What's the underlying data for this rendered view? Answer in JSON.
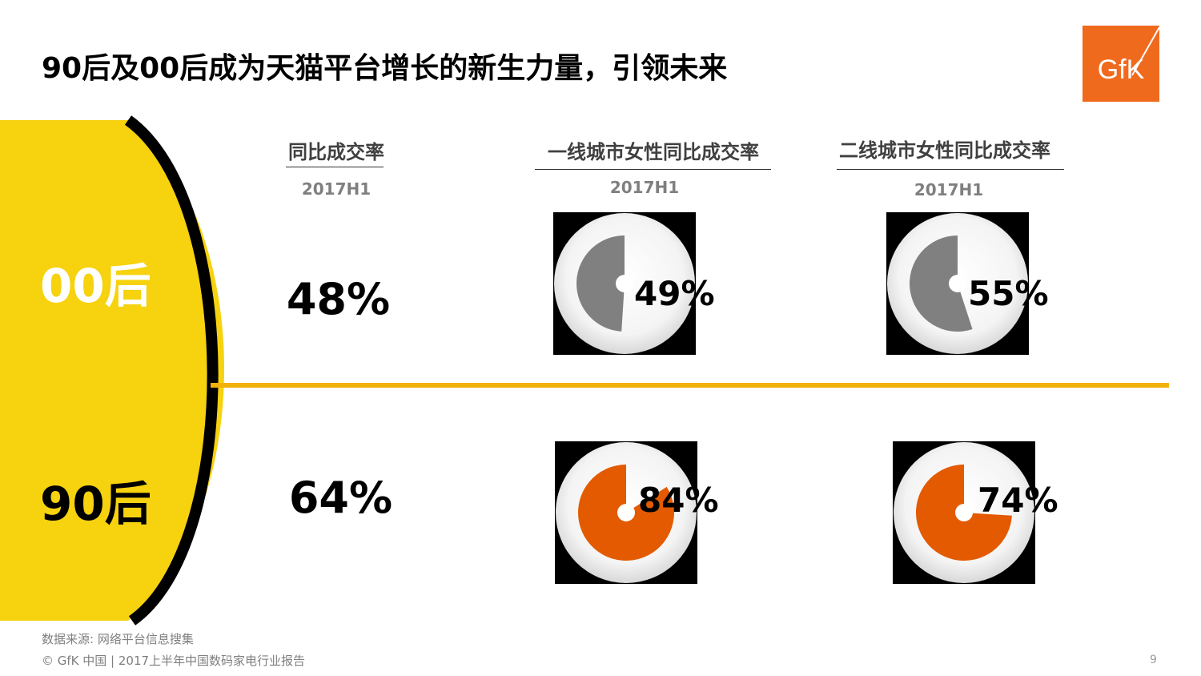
{
  "title": "90后及00后成为天猫平台增长的新生力量，引领未来",
  "logo_text": "GfK",
  "colors": {
    "yellow": "#f6d20f",
    "gold_line": "#f2b10a",
    "gray_slice": "#808080",
    "orange_slice": "#e35a00",
    "logo_orange": "#f06a1e"
  },
  "chart_data": {
    "type": "pie",
    "period": "2017H1",
    "columns": [
      "同比成交率",
      "一线城市女性同比成交率",
      "二线城市女性同比成交率"
    ],
    "rows": [
      {
        "label": "00后",
        "values": [
          48,
          49,
          55
        ],
        "display": [
          "48%",
          "49%",
          "55%"
        ]
      },
      {
        "label": "90后",
        "values": [
          64,
          84,
          74
        ],
        "display": [
          "64%",
          "84%",
          "74%"
        ]
      }
    ]
  },
  "source": "数据来源: 网络平台信息搜集",
  "footer": "© GfK 中国 | 2017上半年中国数码家电行业报告",
  "page_number": "9"
}
